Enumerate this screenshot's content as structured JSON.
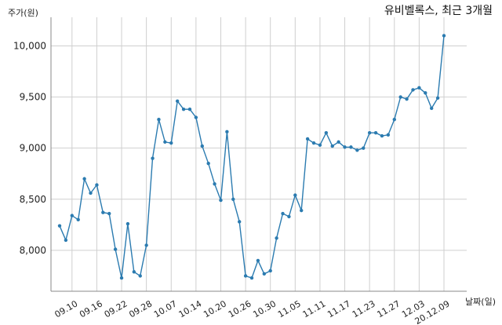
{
  "chart_data": {
    "type": "line",
    "title": "유비벨록스, 최근 3개월",
    "xlabel": "날짜(일)",
    "ylabel": "주가(원)",
    "ylim": [
      7600,
      10280
    ],
    "y_ticks": [
      8000,
      8500,
      9000,
      9500,
      10000
    ],
    "y_tick_labels": [
      "8,000",
      "8,500",
      "9,000",
      "9,500",
      "10,000"
    ],
    "x_tick_labels": [
      "09.10",
      "09.16",
      "09.22",
      "09.28",
      "10.07",
      "10.14",
      "10.20",
      "10.26",
      "10.30",
      "11.05",
      "11.11",
      "11.17",
      "11.23",
      "11.27",
      "12.03",
      "20.12.09"
    ],
    "x_tick_index": [
      2,
      6,
      10,
      14,
      18,
      22,
      26,
      30,
      34,
      38,
      42,
      46,
      50,
      54,
      58,
      62
    ],
    "grid": true,
    "line_color": "#2b7bb0",
    "series": [
      {
        "values": [
          8240,
          8100,
          8340,
          8300,
          8700,
          8560,
          8640,
          8370,
          8360,
          8010,
          7730,
          8260,
          7790,
          7750,
          8050,
          8900,
          9280,
          9060,
          9050,
          9460,
          9380,
          9380,
          9300,
          9020,
          8850,
          8650,
          8490,
          9160,
          8500,
          8280,
          7750,
          7730,
          7900,
          7770,
          7800,
          8120,
          8360,
          8330,
          8540,
          8390,
          9090,
          9050,
          9030,
          9150,
          9020,
          9060,
          9010,
          9010,
          8980,
          9000,
          9150,
          9150,
          9120,
          9130,
          9280,
          9500,
          9480,
          9570,
          9590,
          9540,
          9390,
          9490,
          10100
        ]
      }
    ]
  }
}
